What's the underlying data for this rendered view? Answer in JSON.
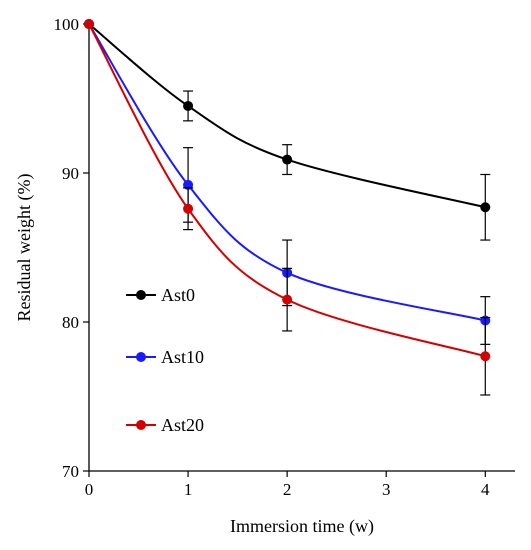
{
  "chart_data": {
    "type": "line",
    "title": "",
    "xlabel": "Immersion time (w)",
    "ylabel": "Residual weight (%)",
    "xlim": [
      0,
      4.3
    ],
    "ylim": [
      70,
      100
    ],
    "x_ticks": [
      0,
      1,
      2,
      3,
      4
    ],
    "y_ticks": [
      70,
      80,
      90,
      100
    ],
    "x_tick_labels": [
      "0",
      "1",
      "2",
      "3",
      "4"
    ],
    "y_tick_labels": [
      "70",
      "80",
      "90",
      "100"
    ],
    "grid": false,
    "smooth": true,
    "legend_position": "center-left",
    "x": [
      0,
      1,
      2,
      4
    ],
    "series": [
      {
        "name": "Ast0",
        "color": "#000000",
        "values": [
          100,
          94.5,
          90.9,
          87.7
        ],
        "errors": [
          0,
          1.0,
          1.0,
          2.2
        ]
      },
      {
        "name": "Ast10",
        "color": "#1a1aff",
        "values": [
          100,
          89.2,
          83.3,
          80.1
        ],
        "errors": [
          0,
          2.5,
          2.2,
          1.6
        ]
      },
      {
        "name": "Ast20",
        "color": "#d40000",
        "values": [
          100,
          87.6,
          81.5,
          77.7
        ],
        "errors": [
          0,
          1.4,
          2.1,
          2.6
        ]
      }
    ]
  }
}
